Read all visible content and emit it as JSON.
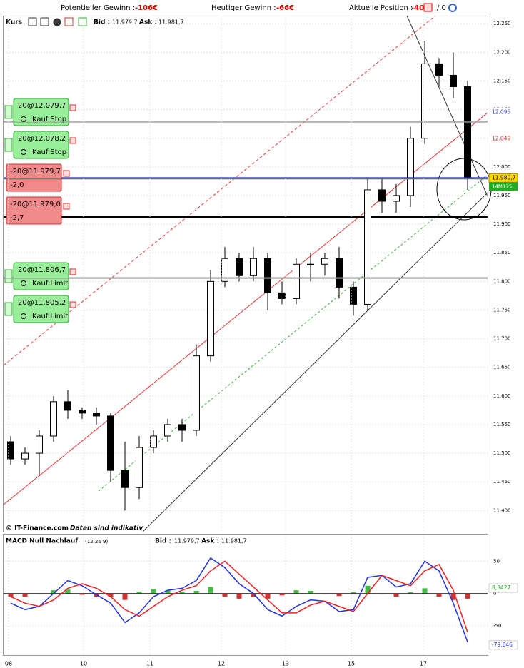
{
  "header": {
    "items": [
      {
        "label": "Potentieller Gewinn :",
        "value": "-106€"
      },
      {
        "label": "Heutiger Gewinn :",
        "value": "-66€"
      },
      {
        "label": "Aktuelle Position :",
        "value": "-40",
        "extra": "/ 0"
      }
    ]
  },
  "toolbar": {
    "title": "Kurs",
    "bid_label": "Bid :",
    "bid": "11.979,7",
    "ask_label": "Ask :",
    "ask": "11.981,7"
  },
  "macd_toolbar": {
    "title": "MACD Null Nachlauf",
    "params": "(12 26 9)",
    "bid_label": "Bid :",
    "bid": "11.979,7",
    "ask_label": "Ask :",
    "ask": "11.981,7"
  },
  "footer": {
    "copyright": "© IT-Finance.com",
    "note": "Daten sind indikativ"
  },
  "orders": [
    {
      "label": "20@12.079,7",
      "value": 12.0797,
      "kind": "Kauf:Stop",
      "side": "buy"
    },
    {
      "label": "20@12.078,2",
      "value": 12.0782,
      "kind": "Kauf:Stop",
      "side": "buy"
    },
    {
      "label": "-20@11.979,7",
      "value": 11.9797,
      "pnl": "-2,0",
      "side": "sell"
    },
    {
      "label": "-20@11.979,0",
      "value": 11.979,
      "pnl": "-2,7",
      "side": "sell"
    },
    {
      "label": "20@11.806,7",
      "value": 11.8067,
      "kind": "Kauf:Limit",
      "side": "buy"
    },
    {
      "label": "20@11.805,2",
      "value": 11.8052,
      "kind": "Kauf:Limit",
      "side": "buy"
    }
  ],
  "chart_data": [
    {
      "type": "candlestick",
      "x": [
        0,
        1,
        2,
        3,
        4,
        5,
        6,
        7,
        8,
        9,
        10,
        11,
        12,
        13,
        14,
        15,
        16,
        17,
        18,
        19,
        20,
        21,
        22,
        23,
        24,
        25,
        26,
        27,
        28,
        29,
        30,
        31,
        32
      ],
      "open": [
        11.52,
        11.49,
        11.5,
        11.53,
        11.59,
        11.575,
        11.57,
        11.565,
        11.47,
        11.44,
        11.51,
        11.53,
        11.55,
        11.54,
        11.67,
        11.8,
        11.84,
        11.81,
        11.84,
        11.78,
        11.77,
        11.83,
        11.83,
        11.84,
        11.79,
        11.76,
        11.96,
        11.94,
        11.95,
        12.05,
        12.18,
        12.16,
        12.14
      ],
      "high": [
        11.53,
        11.51,
        11.54,
        11.6,
        11.61,
        11.58,
        11.58,
        11.57,
        11.52,
        11.53,
        11.54,
        11.56,
        11.56,
        11.69,
        11.82,
        11.86,
        11.85,
        11.86,
        11.85,
        11.8,
        11.84,
        11.85,
        11.85,
        11.86,
        11.8,
        11.98,
        11.98,
        11.97,
        12.07,
        12.22,
        12.19,
        12.2,
        12.15
      ],
      "low": [
        11.48,
        11.48,
        11.46,
        11.52,
        11.56,
        11.56,
        11.55,
        11.45,
        11.4,
        11.42,
        11.5,
        11.52,
        11.52,
        11.53,
        11.66,
        11.79,
        11.8,
        11.8,
        11.75,
        11.76,
        11.76,
        11.8,
        11.81,
        11.77,
        11.74,
        11.75,
        11.92,
        11.92,
        11.93,
        12.04,
        12.14,
        12.12,
        11.96
      ],
      "close": [
        11.49,
        11.5,
        11.53,
        11.59,
        11.575,
        11.57,
        11.565,
        11.47,
        11.44,
        11.51,
        11.53,
        11.55,
        11.54,
        11.67,
        11.8,
        11.84,
        11.81,
        11.84,
        11.78,
        11.77,
        11.83,
        11.83,
        11.84,
        11.79,
        11.76,
        11.96,
        11.94,
        11.95,
        12.05,
        12.18,
        12.16,
        12.14,
        11.98
      ],
      "xlim": [
        -0.5,
        33.4
      ],
      "ylim": [
        11.363,
        12.264
      ],
      "yticks": [
        {
          "value": 12.25,
          "label": "12.250"
        },
        {
          "value": 12.2,
          "label": "12.200"
        },
        {
          "value": 12.15,
          "label": "12.150"
        },
        {
          "value": 12.1,
          "label": "12.100"
        },
        {
          "value": 12.05,
          "label": "12.050"
        },
        {
          "value": 12.0,
          "label": "12.000"
        },
        {
          "value": 11.95,
          "label": "11.950"
        },
        {
          "value": 11.9,
          "label": "11.900"
        },
        {
          "value": 11.85,
          "label": "11.850"
        },
        {
          "value": 11.8,
          "label": "11.800"
        },
        {
          "value": 11.75,
          "label": "11.750"
        },
        {
          "value": 11.7,
          "label": "11.700"
        },
        {
          "value": 11.65,
          "label": "11.650"
        },
        {
          "value": 11.6,
          "label": "11.600"
        },
        {
          "value": 11.55,
          "label": "11.550"
        },
        {
          "value": 11.5,
          "label": "11.500"
        },
        {
          "value": 11.45,
          "label": "11.450"
        },
        {
          "value": 11.4,
          "label": "11.400"
        }
      ],
      "price_tags": [
        {
          "value": 12.095,
          "label": "12.095",
          "color": "#3344cc"
        },
        {
          "value": 12.049,
          "label": "12.049",
          "color": "#dd2222"
        },
        {
          "value": 11.9807,
          "label": "11.980,7",
          "color": "#ffd700"
        }
      ],
      "countdown": "14M175",
      "grid": true
    },
    {
      "type": "macd",
      "x": [
        0,
        1,
        2,
        3,
        4,
        5,
        6,
        7,
        8,
        9,
        10,
        11,
        12,
        13,
        14,
        15,
        16,
        17,
        18,
        19,
        20,
        21,
        22,
        23,
        24,
        25,
        26,
        27,
        28,
        29,
        30,
        31,
        32
      ],
      "macd": [
        -15,
        -25,
        -20,
        0,
        20,
        12,
        -2,
        -15,
        -45,
        -30,
        -5,
        5,
        8,
        20,
        55,
        40,
        15,
        0,
        -25,
        -35,
        -20,
        -10,
        -12,
        -28,
        -25,
        25,
        28,
        10,
        15,
        50,
        35,
        -15,
        -75
      ],
      "signal": [
        -5,
        -15,
        -20,
        -10,
        8,
        15,
        8,
        -5,
        -25,
        -35,
        -20,
        -5,
        5,
        12,
        35,
        50,
        30,
        10,
        -10,
        -30,
        -30,
        -18,
        -12,
        -20,
        -28,
        0,
        28,
        20,
        12,
        35,
        45,
        5,
        -60
      ],
      "histogram": [
        -5,
        -5,
        0,
        5,
        6,
        -2,
        -5,
        -5,
        -10,
        3,
        7,
        5,
        2,
        4,
        10,
        -5,
        -8,
        -5,
        -8,
        -3,
        5,
        4,
        0,
        -4,
        2,
        12,
        0,
        -5,
        2,
        8,
        -5,
        -10,
        -8
      ],
      "macd_color": "#2233dd",
      "signal_color": "#ee2222",
      "xlim": [
        -0.5,
        33.4
      ],
      "ylim": [
        -92,
        68
      ],
      "yticks": [
        50,
        0,
        -50
      ],
      "xticks": [
        {
          "value": -0.15,
          "label": "08"
        },
        {
          "value": 5.1,
          "label": "10"
        },
        {
          "value": 9.75,
          "label": "11"
        },
        {
          "value": 14.75,
          "label": "12"
        },
        {
          "value": 19.25,
          "label": "13"
        },
        {
          "value": 23.85,
          "label": "15"
        },
        {
          "value": 28.9,
          "label": "17"
        }
      ],
      "value_tags": [
        {
          "value": 8.3427,
          "label": "8,3427",
          "color": "#22aa22"
        },
        {
          "value": -79.646,
          "label": "-79,646",
          "color": "#2233dd"
        }
      ],
      "grid": true
    }
  ]
}
